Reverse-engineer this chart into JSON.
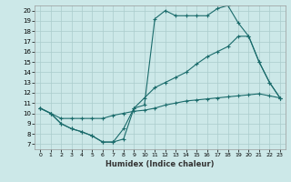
{
  "xlabel": "Humidex (Indice chaleur)",
  "bg_color": "#cce8e8",
  "line_color": "#1a6b6b",
  "grid_color": "#aacccc",
  "xlim_min": -0.5,
  "xlim_max": 23.5,
  "ylim_min": 6.5,
  "ylim_max": 20.5,
  "xticks": [
    0,
    1,
    2,
    3,
    4,
    5,
    6,
    7,
    8,
    9,
    10,
    11,
    12,
    13,
    14,
    15,
    16,
    17,
    18,
    19,
    20,
    21,
    22,
    23
  ],
  "yticks": [
    7,
    8,
    9,
    10,
    11,
    12,
    13,
    14,
    15,
    16,
    17,
    18,
    19,
    20
  ],
  "line1_x": [
    0,
    1,
    2,
    3,
    4,
    5,
    6,
    7,
    8,
    9,
    10,
    11,
    12,
    13,
    14,
    15,
    16,
    17,
    18,
    19,
    20,
    21,
    22,
    23
  ],
  "line1_y": [
    10.5,
    10.0,
    9.0,
    8.5,
    8.2,
    7.8,
    7.2,
    7.2,
    7.5,
    10.5,
    10.8,
    19.2,
    20.0,
    19.5,
    19.5,
    19.5,
    19.5,
    20.2,
    20.5,
    18.8,
    17.5,
    15.0,
    13.0,
    11.5
  ],
  "line2_x": [
    0,
    1,
    2,
    3,
    4,
    5,
    6,
    7,
    8,
    9,
    10,
    11,
    12,
    13,
    14,
    15,
    16,
    17,
    18,
    19,
    20,
    21,
    22,
    23
  ],
  "line2_y": [
    10.5,
    10.0,
    9.0,
    8.5,
    8.2,
    7.8,
    7.2,
    7.2,
    8.5,
    10.5,
    11.5,
    12.5,
    13.0,
    13.5,
    14.0,
    14.8,
    15.5,
    16.0,
    16.5,
    17.5,
    17.5,
    15.0,
    13.0,
    11.5
  ],
  "line3_x": [
    0,
    1,
    2,
    3,
    4,
    5,
    6,
    7,
    8,
    9,
    10,
    11,
    12,
    13,
    14,
    15,
    16,
    17,
    18,
    19,
    20,
    21,
    22,
    23
  ],
  "line3_y": [
    10.5,
    10.0,
    9.5,
    9.5,
    9.5,
    9.5,
    9.5,
    9.8,
    10.0,
    10.2,
    10.3,
    10.5,
    10.8,
    11.0,
    11.2,
    11.3,
    11.4,
    11.5,
    11.6,
    11.7,
    11.8,
    11.9,
    11.7,
    11.5
  ]
}
